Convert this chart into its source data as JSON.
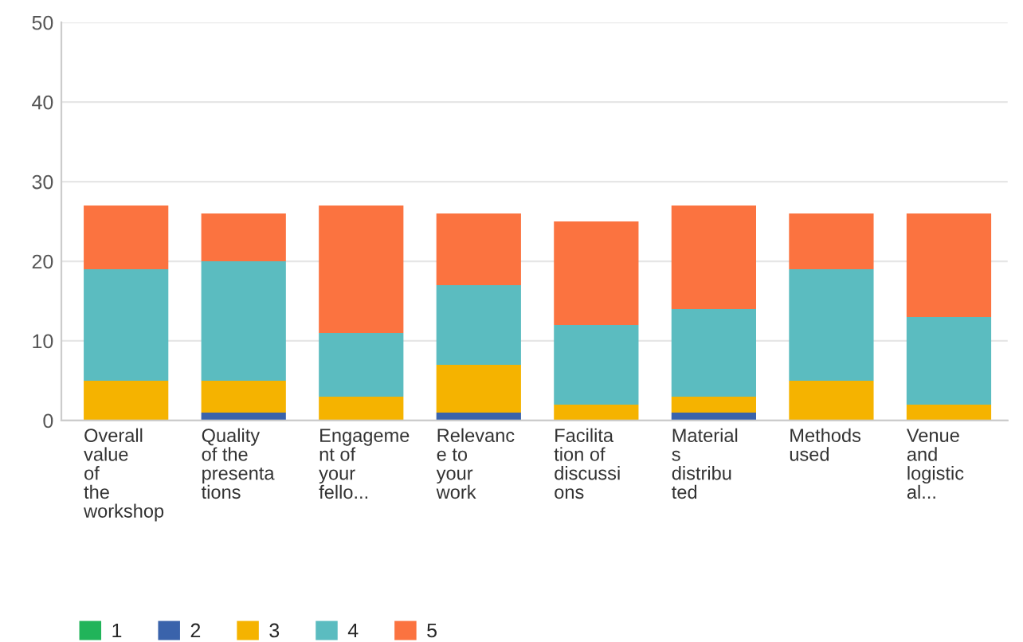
{
  "chart_data": {
    "type": "bar",
    "stacked": true,
    "categories": [
      "Overall\nvalue\nof\nthe\nworkshop",
      "Quality\nof the\npresenta\ntions",
      "Engageme\nnt of\nyour\nfello...",
      "Relevanc\ne to\nyour\nwork",
      "Facilita\ntion of\ndiscussi\nons",
      "Material\ns\ndistribu\nted",
      "Methods\nused",
      "Venue\nand\nlogistic\nal..."
    ],
    "series": [
      {
        "name": "1",
        "color": "#21b45a",
        "values": [
          0,
          0,
          0,
          0,
          0,
          0,
          0,
          0
        ]
      },
      {
        "name": "2",
        "color": "#3a63ab",
        "values": [
          0,
          1,
          0,
          1,
          0,
          1,
          0,
          0
        ]
      },
      {
        "name": "3",
        "color": "#f5b300",
        "values": [
          5,
          4,
          3,
          6,
          2,
          2,
          5,
          2
        ]
      },
      {
        "name": "4",
        "color": "#5bbcc0",
        "values": [
          14,
          15,
          8,
          10,
          10,
          11,
          14,
          11
        ]
      },
      {
        "name": "5",
        "color": "#fb7340",
        "values": [
          8,
          6,
          16,
          9,
          13,
          13,
          7,
          13
        ]
      }
    ],
    "ylim": [
      0,
      50
    ],
    "yticks": [
      0,
      10,
      20,
      30,
      40,
      50
    ],
    "grid": "y",
    "legend": "bottom left"
  }
}
